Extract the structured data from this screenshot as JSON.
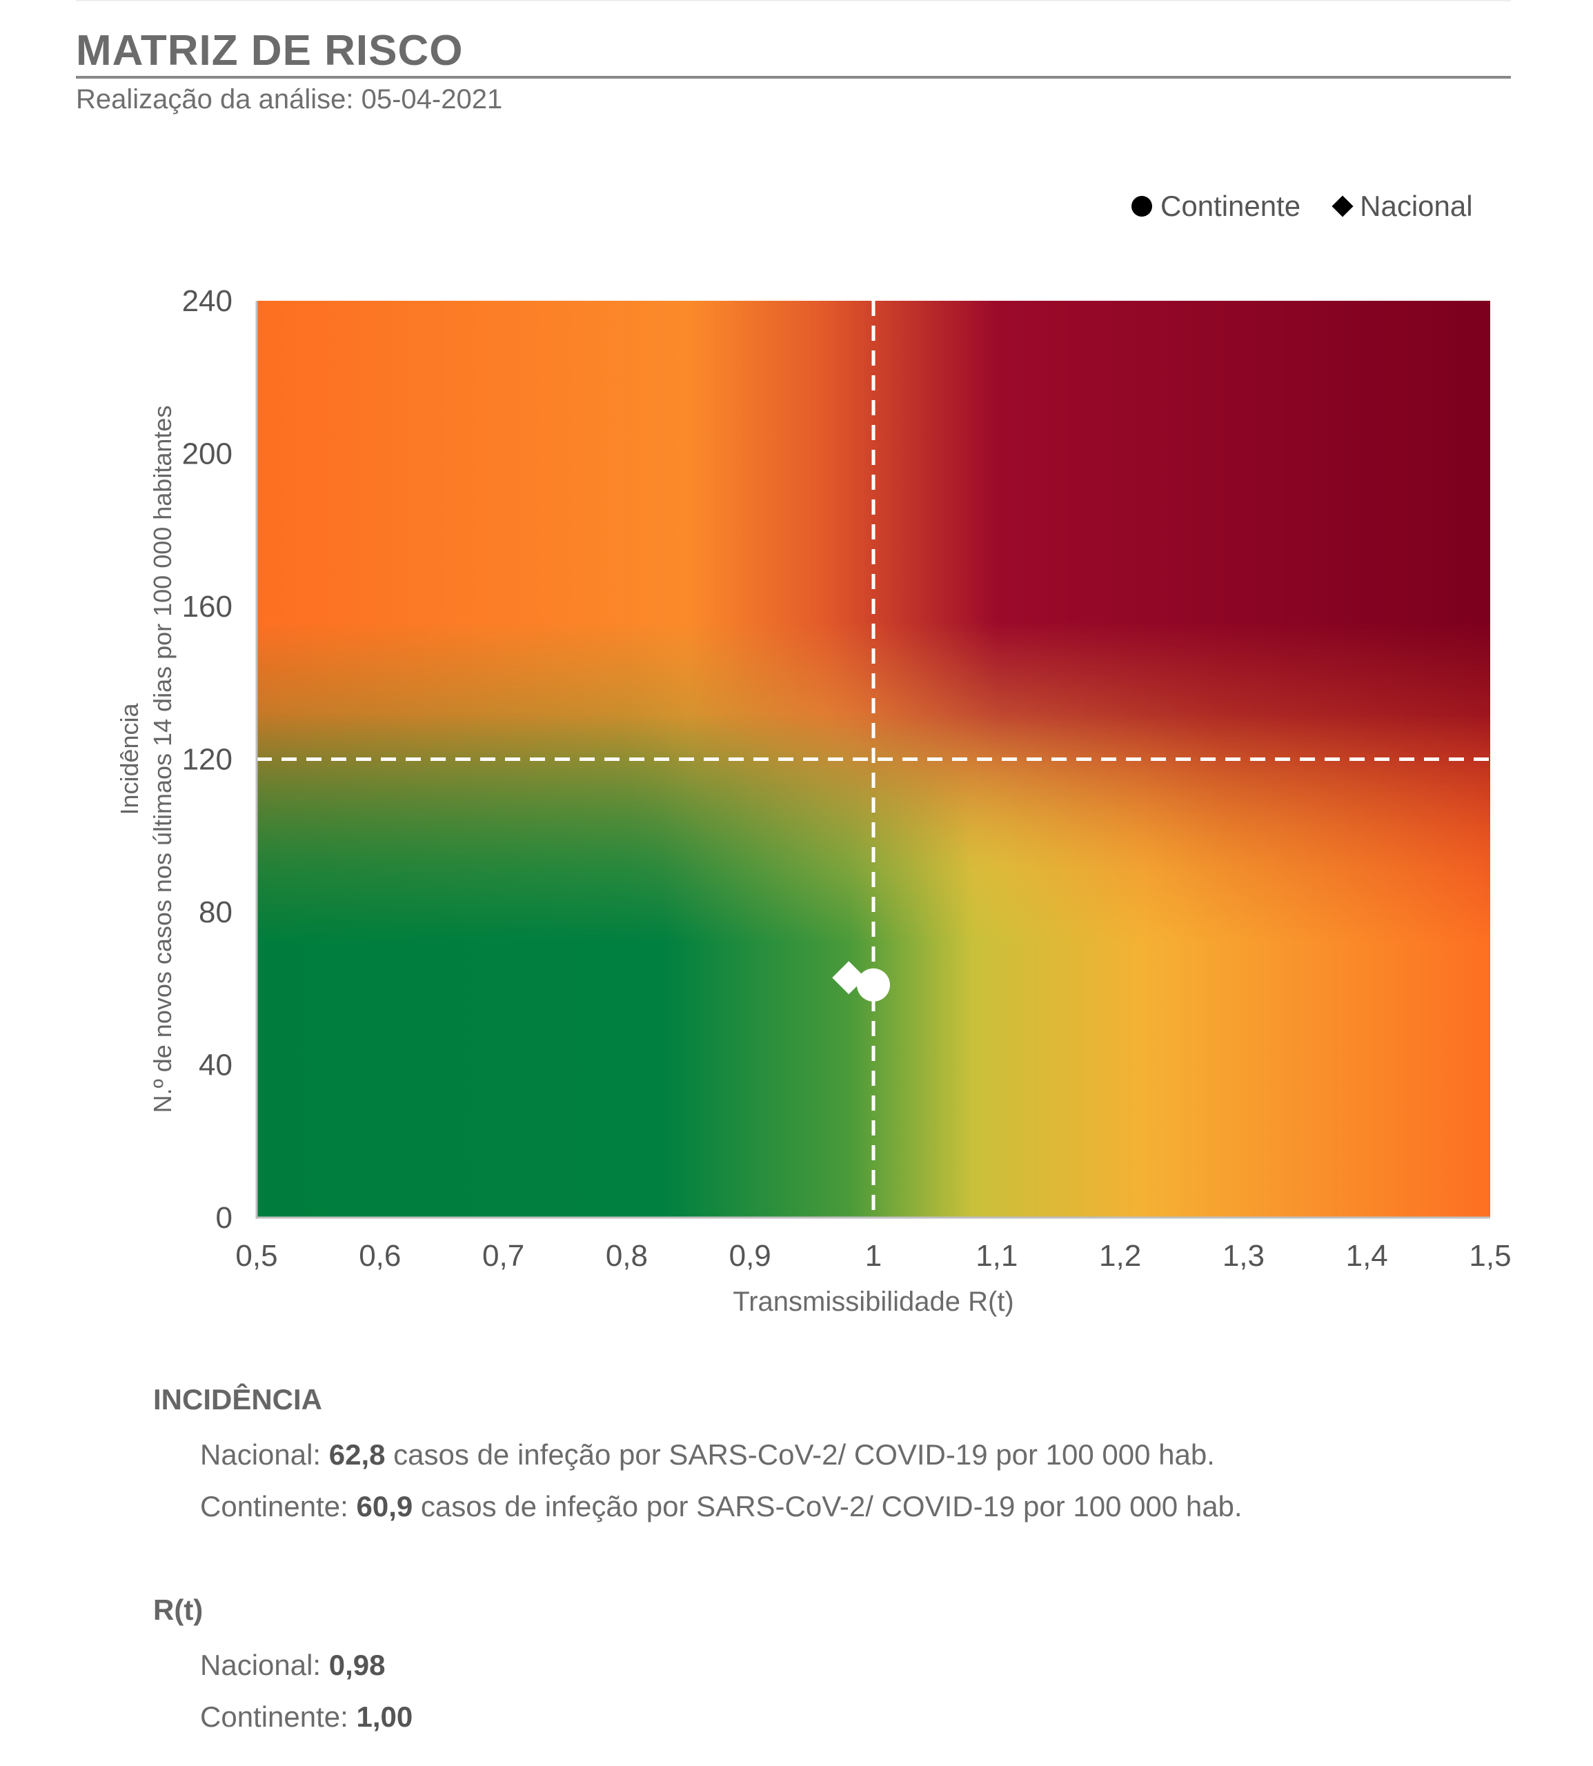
{
  "header": {
    "title": "MATRIZ DE RISCO",
    "subtitle": "Realização da análise: 05-04-2021"
  },
  "legend": {
    "items": [
      {
        "label": "Continente",
        "symbol": "circle"
      },
      {
        "label": "Nacional",
        "symbol": "diamond"
      }
    ]
  },
  "chart_data": {
    "type": "scatter",
    "title": "",
    "xlabel": "Transmissibilidade R(t)",
    "ylabel_line1": "Incidência",
    "ylabel_line2": "N.º de novos casos nos últimaos 14 dias por 100 000 habitantes",
    "xlim": [
      0.5,
      1.5
    ],
    "ylim": [
      0,
      240
    ],
    "x_ticks": [
      "0,5",
      "0,6",
      "0,7",
      "0,8",
      "0,9",
      "1",
      "1,1",
      "1,2",
      "1,3",
      "1,4",
      "1,5"
    ],
    "y_ticks": [
      "0",
      "40",
      "80",
      "120",
      "160",
      "200",
      "240"
    ],
    "thresholds": {
      "x": 1,
      "y": 120
    },
    "background": "risk gradient: green (low R, low incidence) to dark red (high R, high incidence)",
    "series": [
      {
        "name": "Continente",
        "marker": "circle",
        "x": 1.0,
        "y": 60.9
      },
      {
        "name": "Nacional",
        "marker": "diamond",
        "x": 0.98,
        "y": 62.8
      }
    ],
    "colors": {
      "green": "#007d3c",
      "yellow": "#fbb03b",
      "orange": "#fd6f22",
      "darkred": "#7c001e"
    }
  },
  "incidencia": {
    "heading": "INCIDÊNCIA",
    "nacional": {
      "label": "Nacional: ",
      "value": "62,8",
      "suffix": " casos de infeção por SARS-CoV-2/ COVID-19 por 100 000 hab."
    },
    "continente": {
      "label": "Continente: ",
      "value": "60,9",
      "suffix": " casos de infeção por SARS-CoV-2/ COVID-19 por 100 000 hab."
    }
  },
  "rt": {
    "heading": "R(t)",
    "nacional": {
      "label": "Nacional: ",
      "value": "0,98"
    },
    "continente": {
      "label": "Continente: ",
      "value": "1,00"
    }
  }
}
